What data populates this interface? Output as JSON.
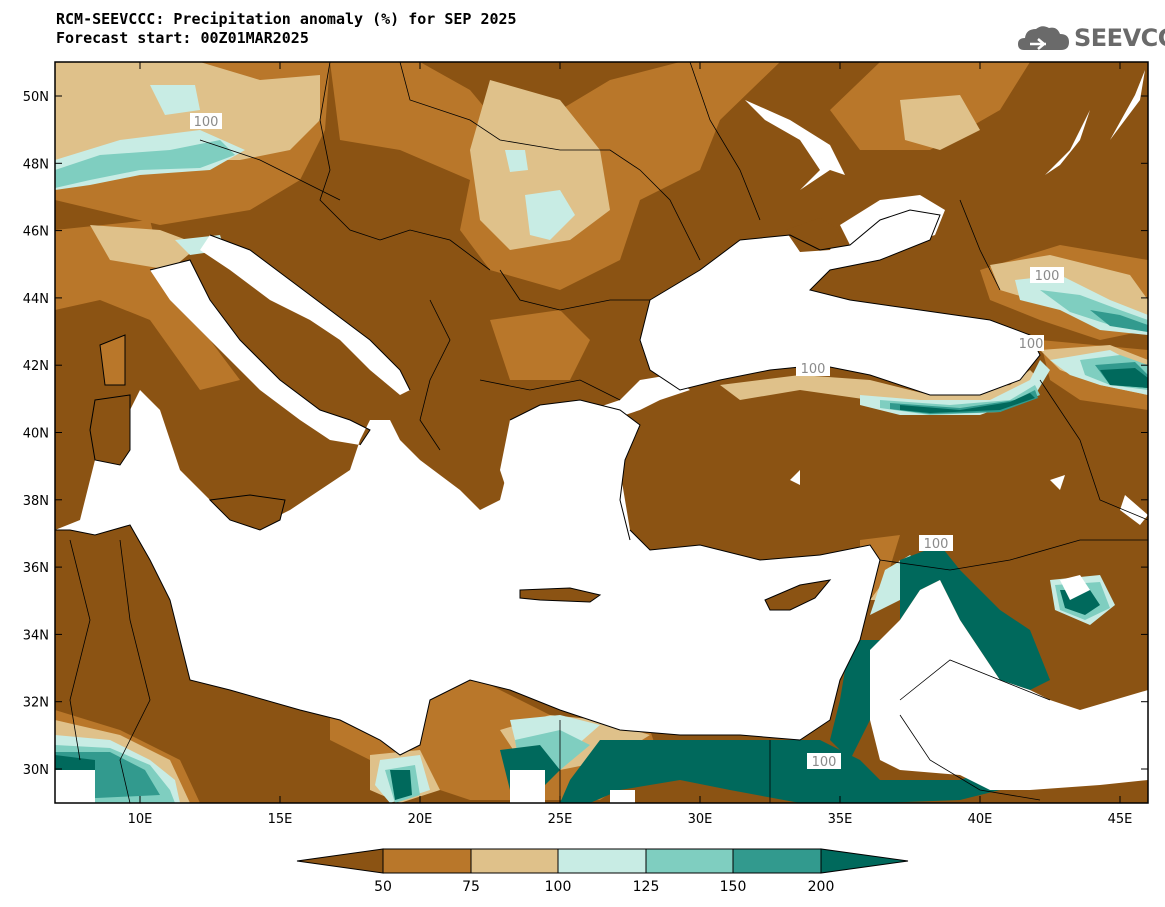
{
  "header": {
    "title": "RCM-SEEVCCC: Precipitation anomaly (%) for SEP 2025",
    "subtitle": "Forecast start: 00Z01MAR2025"
  },
  "logo": {
    "text": "SEEVCCC",
    "icon": "cloud-icon"
  },
  "map": {
    "lat_labels": [
      "50N",
      "48N",
      "46N",
      "44N",
      "42N",
      "40N",
      "38N",
      "36N",
      "34N",
      "32N",
      "30N"
    ],
    "lon_labels": [
      "10E",
      "15E",
      "20E",
      "25E",
      "30E",
      "35E",
      "40E",
      "45E"
    ],
    "contour_labels": [
      "100",
      "100",
      "100",
      "100",
      "100",
      "100"
    ],
    "colors": {
      "below_50": "#8b5313",
      "r50_75": "#b9772a",
      "r75_100": "#dfc18a",
      "r100_125": "#c8ece4",
      "r125_150": "#7fcec0",
      "r150_200": "#329a8e",
      "above_200": "#00695c",
      "no_data": "#ffffff"
    }
  },
  "colorbar": {
    "labels": [
      "50",
      "75",
      "100",
      "125",
      "150",
      "200"
    ]
  }
}
